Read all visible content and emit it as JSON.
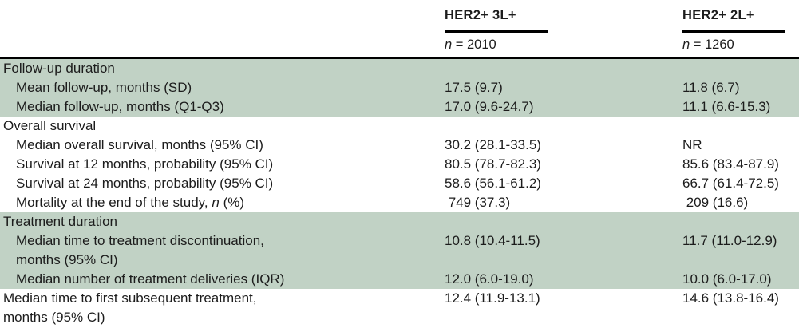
{
  "colors": {
    "shade": "#c1d2c5",
    "rule": "#000000",
    "text": "#1c1c1c"
  },
  "header": {
    "col2": {
      "title": "HER2+ 3L+",
      "n_italic": "n",
      "n_rest": " = 2010"
    },
    "col3": {
      "title": "HER2+ 2L+",
      "n_italic": "n",
      "n_rest": " = 1260"
    }
  },
  "table": {
    "rows": [
      {
        "indent": 0,
        "shaded": true,
        "label_parts": [
          {
            "t": "Follow-up duration"
          }
        ],
        "col2": "",
        "col3": ""
      },
      {
        "indent": 1,
        "shaded": true,
        "label_parts": [
          {
            "t": "Mean follow-up, months (SD)"
          }
        ],
        "col2": "17.5 (9.7)",
        "col3": "11.8 (6.7)"
      },
      {
        "indent": 1,
        "shaded": true,
        "label_parts": [
          {
            "t": "Median follow-up, months (Q1-Q3)"
          }
        ],
        "col2": "17.0 (9.6-24.7)",
        "col3": "11.1 (6.6-15.3)"
      },
      {
        "indent": 0,
        "shaded": false,
        "label_parts": [
          {
            "t": "Overall survival"
          }
        ],
        "col2": "",
        "col3": ""
      },
      {
        "indent": 1,
        "shaded": false,
        "label_parts": [
          {
            "t": "Median overall survival, months (95% CI)"
          }
        ],
        "col2": "30.2 (28.1-33.5)",
        "col3": "NR"
      },
      {
        "indent": 1,
        "shaded": false,
        "label_parts": [
          {
            "t": "Survival at 12 months, probability (95% CI)"
          }
        ],
        "col2": "80.5 (78.7-82.3)",
        "col3": "85.6 (83.4-87.9)"
      },
      {
        "indent": 1,
        "shaded": false,
        "label_parts": [
          {
            "t": "Survival at 24 months, probability (95% CI)"
          }
        ],
        "col2": "58.6 (56.1-61.2)",
        "col3": "66.7 (61.4-72.5)"
      },
      {
        "indent": 1,
        "shaded": false,
        "label_parts": [
          {
            "t": "Mortality at the end of the study, "
          },
          {
            "t": "n",
            "i": true
          },
          {
            "t": " (%)"
          }
        ],
        "col2": " 749 (37.3)",
        "col3": " 209 (16.6)"
      },
      {
        "indent": 0,
        "shaded": true,
        "label_parts": [
          {
            "t": "Treatment duration"
          }
        ],
        "col2": "",
        "col3": ""
      },
      {
        "indent": 1,
        "shaded": true,
        "label_parts": [
          {
            "t": "Median time to treatment discontinuation,"
          }
        ],
        "label2": "months (95% CI)",
        "col2": "10.8 (10.4-11.5)",
        "col3": "11.7 (11.0-12.9)"
      },
      {
        "indent": 1,
        "shaded": true,
        "label_parts": [
          {
            "t": "Median number of treatment deliveries (IQR)"
          }
        ],
        "col2": "12.0 (6.0-19.0)",
        "col3": "10.0 (6.0-17.0)"
      },
      {
        "indent": 0,
        "shaded": false,
        "label_parts": [
          {
            "t": "Median time to first subsequent treatment,"
          }
        ],
        "label2": "months (95% CI)",
        "col2": "12.4 (11.9-13.1)",
        "col3": "14.6 (13.8-16.4)"
      }
    ]
  }
}
